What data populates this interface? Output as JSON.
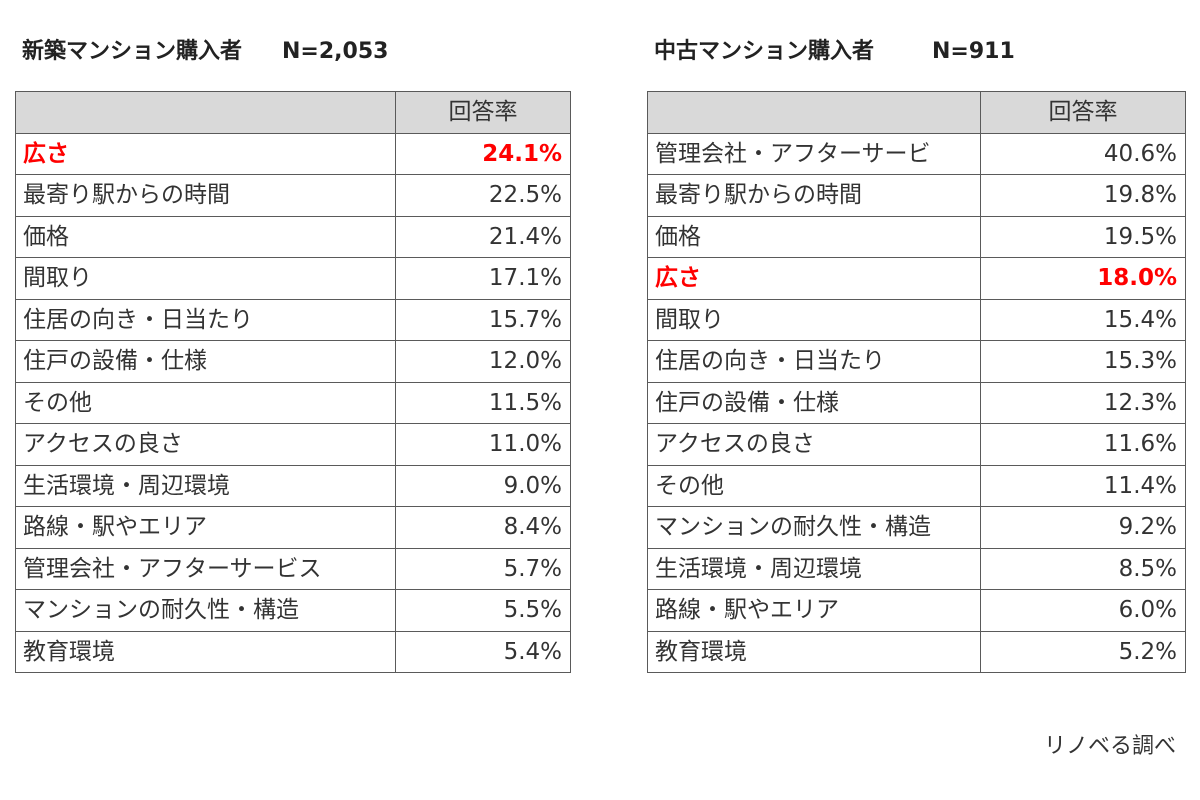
{
  "source": "リノベる調べ",
  "tables": [
    {
      "title": "新築マンション購入者",
      "n_label": "N=2,053",
      "columns": [
        "",
        "回答率"
      ],
      "rows": [
        {
          "item": "広さ",
          "rate": "24.1%",
          "highlight": true
        },
        {
          "item": "最寄り駅からの時間",
          "rate": "22.5%",
          "highlight": false
        },
        {
          "item": "価格",
          "rate": "21.4%",
          "highlight": false
        },
        {
          "item": "間取り",
          "rate": "17.1%",
          "highlight": false
        },
        {
          "item": "住居の向き・日当たり",
          "rate": "15.7%",
          "highlight": false
        },
        {
          "item": "住戸の設備・仕様",
          "rate": "12.0%",
          "highlight": false
        },
        {
          "item": "その他",
          "rate": "11.5%",
          "highlight": false
        },
        {
          "item": "アクセスの良さ",
          "rate": "11.0%",
          "highlight": false
        },
        {
          "item": "生活環境・周辺環境",
          "rate": "9.0%",
          "highlight": false
        },
        {
          "item": "路線・駅やエリア",
          "rate": "8.4%",
          "highlight": false
        },
        {
          "item": "管理会社・アフターサービス",
          "rate": "5.7%",
          "highlight": false
        },
        {
          "item": "マンションの耐久性・構造",
          "rate": "5.5%",
          "highlight": false
        },
        {
          "item": "教育環境",
          "rate": "5.4%",
          "highlight": false
        }
      ]
    },
    {
      "title": "中古マンション購入者",
      "n_label": "N=911",
      "columns": [
        "",
        "回答率"
      ],
      "rows": [
        {
          "item": "管理会社・アフターサービ",
          "rate": "40.6%",
          "highlight": false
        },
        {
          "item": "最寄り駅からの時間",
          "rate": "19.8%",
          "highlight": false
        },
        {
          "item": "価格",
          "rate": "19.5%",
          "highlight": false
        },
        {
          "item": "広さ",
          "rate": "18.0%",
          "highlight": true
        },
        {
          "item": "間取り",
          "rate": "15.4%",
          "highlight": false
        },
        {
          "item": "住居の向き・日当たり",
          "rate": "15.3%",
          "highlight": false
        },
        {
          "item": "住戸の設備・仕様",
          "rate": "12.3%",
          "highlight": false
        },
        {
          "item": "アクセスの良さ",
          "rate": "11.6%",
          "highlight": false
        },
        {
          "item": "その他",
          "rate": "11.4%",
          "highlight": false
        },
        {
          "item": "マンションの耐久性・構造",
          "rate": "9.2%",
          "highlight": false
        },
        {
          "item": "生活環境・周辺環境",
          "rate": "8.5%",
          "highlight": false
        },
        {
          "item": "路線・駅やエリア",
          "rate": "6.0%",
          "highlight": false
        },
        {
          "item": "教育環境",
          "rate": "5.2%",
          "highlight": false
        }
      ]
    }
  ],
  "colors": {
    "highlight": "#ff0000",
    "header_bg": "#d9d9d9",
    "border": "#5a5a5a"
  }
}
